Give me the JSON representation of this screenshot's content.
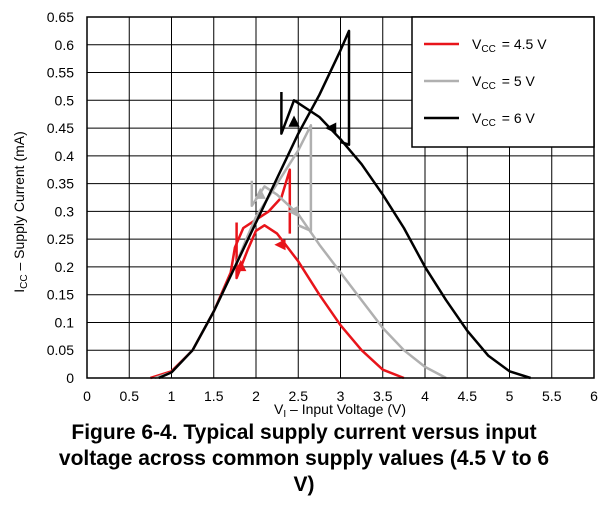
{
  "chart_data": {
    "type": "line",
    "xlabel_main": "V",
    "xlabel_sub": "I",
    "xlabel_rest": " – Input Voltage (V)",
    "ylabel_main": "I",
    "ylabel_sub": "CC",
    "ylabel_rest": " – Supply Current (mA)",
    "xlim": [
      0,
      6
    ],
    "ylim": [
      0,
      0.65
    ],
    "x_ticks": [
      "0",
      "0.5",
      "1",
      "1.5",
      "2",
      "2.5",
      "3",
      "3.5",
      "4",
      "4.5",
      "5",
      "5.5",
      "6"
    ],
    "y_ticks": [
      "0",
      "0.05",
      "0.1",
      "0.15",
      "0.2",
      "0.25",
      "0.3",
      "0.35",
      "0.4",
      "0.45",
      "0.5",
      "0.55",
      "0.6",
      "0.65"
    ],
    "grid": true,
    "legend_position": "top-right",
    "series": [
      {
        "name": "= 4.5 V",
        "label_main": "V",
        "label_sub": "CC",
        "color": "#e8141a",
        "up": [
          [
            0.75,
            0
          ],
          [
            1.0,
            0.012
          ],
          [
            1.25,
            0.05
          ],
          [
            1.5,
            0.12
          ],
          [
            1.7,
            0.19
          ],
          [
            1.75,
            0.235
          ],
          [
            1.85,
            0.27
          ],
          [
            2.0,
            0.285
          ],
          [
            2.15,
            0.3
          ],
          [
            2.3,
            0.325
          ],
          [
            2.4,
            0.375
          ],
          [
            2.4,
            0.26
          ]
        ],
        "down": [
          [
            1.77,
            0.28
          ],
          [
            1.77,
            0.18
          ],
          [
            1.9,
            0.23
          ],
          [
            2.0,
            0.265
          ],
          [
            2.1,
            0.275
          ],
          [
            2.25,
            0.26
          ],
          [
            2.5,
            0.21
          ],
          [
            2.75,
            0.15
          ],
          [
            3.0,
            0.095
          ],
          [
            3.25,
            0.05
          ],
          [
            3.5,
            0.015
          ],
          [
            3.75,
            0
          ]
        ],
        "arrows": [
          {
            "x": 1.82,
            "y": 0.2,
            "dir": "up"
          },
          {
            "x": 2.3,
            "y": 0.24,
            "dir": "left"
          }
        ]
      },
      {
        "name": "= 5 V",
        "label_main": "V",
        "label_sub": "CC",
        "color": "#b0b0b0",
        "up": [
          [
            0.8,
            0
          ],
          [
            1.0,
            0.01
          ],
          [
            1.25,
            0.05
          ],
          [
            1.5,
            0.12
          ],
          [
            1.75,
            0.2
          ],
          [
            1.9,
            0.255
          ],
          [
            2.0,
            0.29
          ],
          [
            2.25,
            0.35
          ],
          [
            2.5,
            0.41
          ],
          [
            2.65,
            0.455
          ],
          [
            2.65,
            0.265
          ],
          [
            2.5,
            0.275
          ]
        ],
        "down": [
          [
            1.95,
            0.355
          ],
          [
            1.95,
            0.31
          ],
          [
            2.1,
            0.345
          ],
          [
            2.25,
            0.33
          ],
          [
            2.5,
            0.295
          ],
          [
            2.75,
            0.24
          ],
          [
            3.0,
            0.19
          ],
          [
            3.25,
            0.14
          ],
          [
            3.5,
            0.09
          ],
          [
            3.75,
            0.05
          ],
          [
            4.0,
            0.02
          ],
          [
            4.25,
            0
          ]
        ],
        "arrows": [
          {
            "x": 2.05,
            "y": 0.33,
            "dir": "up"
          },
          {
            "x": 2.45,
            "y": 0.3,
            "dir": "left"
          }
        ]
      },
      {
        "name": "= 6 V",
        "label_main": "V",
        "label_sub": "CC",
        "color": "#000000",
        "up": [
          [
            0.85,
            0
          ],
          [
            1.0,
            0.01
          ],
          [
            1.25,
            0.05
          ],
          [
            1.5,
            0.12
          ],
          [
            1.75,
            0.2
          ],
          [
            2.0,
            0.28
          ],
          [
            2.25,
            0.36
          ],
          [
            2.5,
            0.44
          ],
          [
            2.75,
            0.51
          ],
          [
            3.0,
            0.59
          ],
          [
            3.1,
            0.625
          ],
          [
            3.1,
            0.42
          ],
          [
            3.0,
            0.425
          ]
        ],
        "down": [
          [
            2.3,
            0.515
          ],
          [
            2.3,
            0.44
          ],
          [
            2.45,
            0.5
          ],
          [
            2.75,
            0.47
          ],
          [
            3.0,
            0.43
          ],
          [
            3.25,
            0.385
          ],
          [
            3.5,
            0.33
          ],
          [
            3.75,
            0.27
          ],
          [
            4.0,
            0.2
          ],
          [
            4.25,
            0.14
          ],
          [
            4.5,
            0.085
          ],
          [
            4.75,
            0.04
          ],
          [
            5.0,
            0.012
          ],
          [
            5.25,
            0
          ]
        ],
        "arrows": [
          {
            "x": 2.45,
            "y": 0.46,
            "dir": "up"
          },
          {
            "x": 2.9,
            "y": 0.45,
            "dir": "left"
          }
        ]
      }
    ]
  },
  "caption": {
    "line1": "Figure 6-4. Typical supply current versus input",
    "line2": "voltage across common supply values (4.5 V to 6",
    "line3": "V)"
  }
}
